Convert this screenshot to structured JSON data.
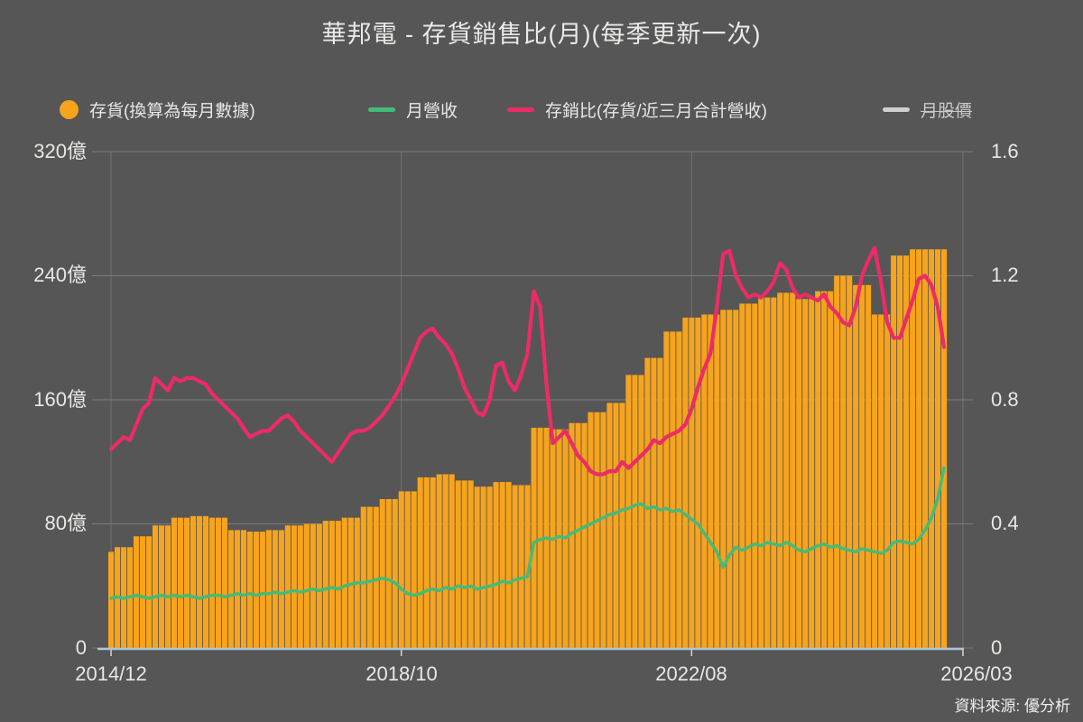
{
  "title": "華邦電 - 存貨銷售比(月)(每季更新一次)",
  "source": "資料來源: 優分析",
  "colors": {
    "background": "#565656",
    "bar": "#F7A41C",
    "revenue_line": "#45BB78",
    "ratio_line": "#ED2B67",
    "price_line": "#CFCFCF",
    "grid": "#7D7D7D",
    "axis_line": "#AEC6DA",
    "text": "#E7E7E4"
  },
  "legend": {
    "items": [
      {
        "label": "存貨(換算為每月數據)",
        "swatch": "circle",
        "color": "#F7A41C",
        "disabled": false
      },
      {
        "label": "月營收",
        "swatch": "line",
        "color": "#45BB78",
        "disabled": false
      },
      {
        "label": "存銷比(存貨/近三月合計營收)",
        "swatch": "line",
        "color": "#ED2B67",
        "disabled": false
      },
      {
        "label": "月股價",
        "swatch": "line",
        "color": "#CFCFCF",
        "disabled": true
      }
    ]
  },
  "axes": {
    "left": [
      "320億",
      "240億",
      "160億",
      "80億",
      "0"
    ],
    "right": [
      "1.6",
      "1.2",
      "0.8",
      "0.4",
      "0"
    ],
    "x": [
      "2014/12",
      "2018/10",
      "2022/08",
      "2026/03"
    ]
  },
  "chart_data": {
    "type": "bar",
    "frequency": "monthly",
    "x_start": "2014/12",
    "x_data_end": "2025/12",
    "x_axis_end": "2026/03",
    "title": "華邦電 - 存貨銷售比(月)(每季更新一次)",
    "axis_left": {
      "unit": "億",
      "range": [
        0,
        320
      ],
      "ticks": [
        0,
        80,
        160,
        240,
        320
      ]
    },
    "axis_right": {
      "range": [
        0,
        1.6
      ],
      "ticks": [
        0,
        0.4,
        0.8,
        1.2,
        1.6
      ]
    },
    "x_tick_month_index": [
      0,
      46,
      92,
      135
    ],
    "grid": true,
    "legend_position": "top",
    "series": [
      {
        "name": "存貨(換算為每月數據)",
        "type": "bar",
        "axis": "left",
        "unit": "億",
        "color": "#F7A41C",
        "values": [
          62,
          65,
          65,
          65,
          72,
          72,
          72,
          79,
          79,
          79,
          84,
          84,
          84,
          85,
          85,
          85,
          84,
          84,
          84,
          76,
          76,
          76,
          75,
          75,
          75,
          76,
          76,
          76,
          79,
          79,
          79,
          80,
          80,
          80,
          82,
          82,
          82,
          84,
          84,
          84,
          91,
          91,
          91,
          96,
          96,
          96,
          101,
          101,
          101,
          110,
          110,
          110,
          112,
          112,
          112,
          108,
          108,
          108,
          104,
          104,
          104,
          107,
          107,
          107,
          105,
          105,
          105,
          142,
          142,
          142,
          141,
          141,
          141,
          145,
          145,
          145,
          152,
          152,
          152,
          158,
          158,
          158,
          176,
          176,
          176,
          187,
          187,
          187,
          204,
          204,
          204,
          213,
          213,
          213,
          215,
          215,
          215,
          218,
          218,
          218,
          222,
          222,
          222,
          226,
          226,
          226,
          229,
          229,
          229,
          225,
          225,
          225,
          230,
          230,
          230,
          240,
          240,
          240,
          234,
          234,
          234,
          215,
          215,
          215,
          253,
          253,
          253,
          257,
          257,
          257,
          257,
          257,
          257
        ]
      },
      {
        "name": "月營收",
        "type": "line",
        "axis": "left",
        "unit": "億",
        "color": "#45BB78",
        "values": [
          32,
          33,
          32,
          33,
          34,
          33,
          32,
          33,
          34,
          33,
          34,
          33,
          34,
          33,
          32,
          33,
          34,
          34,
          33,
          34,
          35,
          34,
          35,
          34,
          35,
          35,
          36,
          35,
          36,
          37,
          36,
          37,
          38,
          37,
          38,
          39,
          38,
          40,
          41,
          42,
          42,
          43,
          44,
          45,
          44,
          42,
          38,
          35,
          34,
          35,
          37,
          38,
          37,
          39,
          38,
          40,
          39,
          40,
          38,
          39,
          40,
          41,
          43,
          42,
          44,
          45,
          46,
          68,
          70,
          71,
          70,
          72,
          71,
          74,
          76,
          78,
          80,
          82,
          84,
          86,
          87,
          89,
          90,
          92,
          93,
          90,
          91,
          89,
          90,
          88,
          89,
          86,
          83,
          80,
          74,
          68,
          62,
          52,
          60,
          65,
          63,
          65,
          67,
          66,
          68,
          67,
          66,
          68,
          66,
          63,
          62,
          64,
          66,
          67,
          65,
          66,
          64,
          63,
          62,
          64,
          63,
          62,
          61,
          63,
          68,
          69,
          68,
          67,
          70,
          76,
          84,
          96,
          116
        ]
      },
      {
        "name": "存銷比(存貨/近三月合計營收)",
        "type": "line",
        "axis": "right",
        "color": "#ED2B67",
        "values": [
          0.64,
          0.66,
          0.68,
          0.67,
          0.72,
          0.77,
          0.79,
          0.87,
          0.85,
          0.83,
          0.87,
          0.86,
          0.87,
          0.87,
          0.86,
          0.85,
          0.82,
          0.8,
          0.78,
          0.76,
          0.74,
          0.71,
          0.68,
          0.69,
          0.7,
          0.7,
          0.72,
          0.74,
          0.75,
          0.73,
          0.7,
          0.68,
          0.66,
          0.64,
          0.62,
          0.6,
          0.63,
          0.66,
          0.69,
          0.7,
          0.7,
          0.71,
          0.73,
          0.75,
          0.78,
          0.81,
          0.85,
          0.9,
          0.95,
          1.0,
          1.02,
          1.03,
          1.0,
          0.98,
          0.95,
          0.9,
          0.84,
          0.8,
          0.76,
          0.75,
          0.8,
          0.91,
          0.92,
          0.86,
          0.83,
          0.88,
          0.95,
          1.15,
          1.1,
          0.85,
          0.66,
          0.68,
          0.7,
          0.66,
          0.62,
          0.6,
          0.57,
          0.56,
          0.56,
          0.57,
          0.57,
          0.6,
          0.58,
          0.6,
          0.62,
          0.64,
          0.67,
          0.66,
          0.68,
          0.69,
          0.7,
          0.72,
          0.77,
          0.84,
          0.9,
          0.95,
          1.1,
          1.27,
          1.28,
          1.2,
          1.16,
          1.13,
          1.14,
          1.13,
          1.15,
          1.18,
          1.24,
          1.22,
          1.16,
          1.13,
          1.14,
          1.13,
          1.12,
          1.14,
          1.1,
          1.08,
          1.05,
          1.04,
          1.1,
          1.2,
          1.25,
          1.29,
          1.18,
          1.05,
          1.0,
          1.0,
          1.06,
          1.12,
          1.19,
          1.2,
          1.17,
          1.1,
          0.97
        ]
      },
      {
        "name": "月股價",
        "type": "line",
        "axis": "right",
        "color": "#CFCFCF",
        "hidden": true,
        "values": []
      }
    ]
  }
}
